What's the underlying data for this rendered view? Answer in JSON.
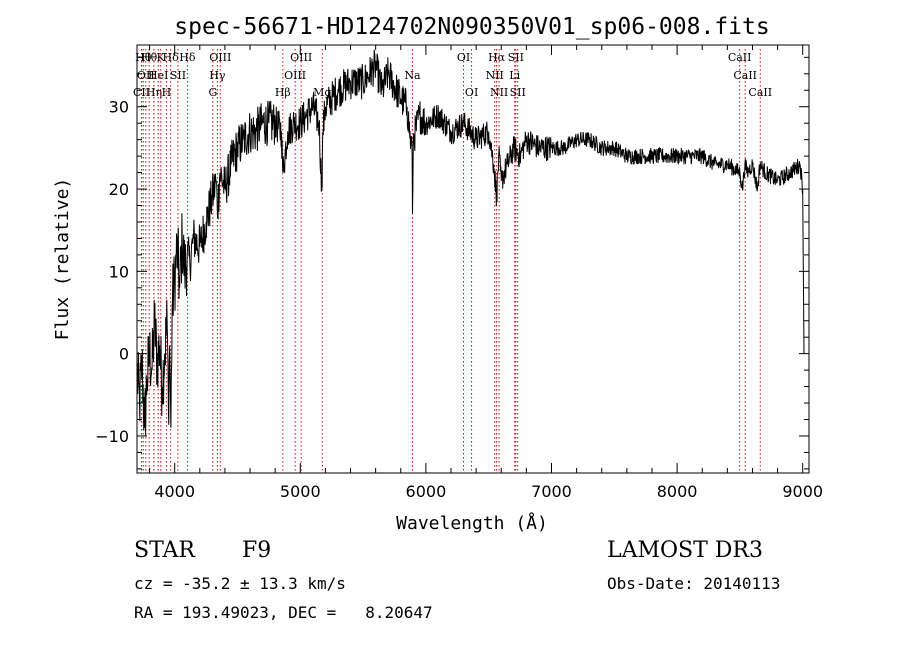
{
  "chart_data": {
    "type": "line",
    "title": "spec-56671-HD124702N090350V01_sp06-008.fits",
    "xlabel": "Wavelength (Å)",
    "ylabel": "Flux (relative)",
    "xlim": [
      3700,
      9050
    ],
    "ylim": [
      -14.5,
      37.5
    ],
    "x_ticks": [
      4000,
      5000,
      6000,
      7000,
      8000,
      9000
    ],
    "y_ticks": [
      -10,
      0,
      10,
      20,
      30
    ],
    "series": [
      {
        "name": "flux",
        "x": [
          3700,
          3720,
          3740,
          3760,
          3780,
          3800,
          3820,
          3840,
          3860,
          3880,
          3900,
          3920,
          3940,
          3950,
          3960,
          3970,
          3980,
          4000,
          4020,
          4040,
          4060,
          4080,
          4100,
          4120,
          4150,
          4200,
          4250,
          4300,
          4330,
          4340,
          4360,
          4400,
          4450,
          4500,
          4550,
          4600,
          4650,
          4700,
          4750,
          4800,
          4850,
          4861,
          4900,
          4950,
          5000,
          5050,
          5100,
          5150,
          5170,
          5180,
          5200,
          5300,
          5400,
          5500,
          5550,
          5600,
          5650,
          5700,
          5800,
          5850,
          5890,
          5893,
          5900,
          5950,
          6000,
          6100,
          6200,
          6300,
          6400,
          6500,
          6540,
          6563,
          6580,
          6600,
          6650,
          6700,
          6750,
          6800,
          6900,
          7000,
          7100,
          7200,
          7300,
          7400,
          7500,
          7600,
          7700,
          7800,
          7900,
          8000,
          8100,
          8200,
          8300,
          8400,
          8500,
          8520,
          8540,
          8560,
          8600,
          8640,
          8660,
          8700,
          8800,
          8900,
          8980,
          9000,
          9010
        ],
        "y": [
          -2,
          -6,
          -1,
          -9,
          -3,
          0,
          -2,
          4,
          -1,
          1,
          -4,
          0,
          4,
          -7,
          1,
          -9,
          6,
          9,
          13,
          8,
          14,
          10,
          12,
          11,
          14,
          13,
          16,
          19,
          21,
          17,
          22,
          20,
          23,
          25,
          26,
          27,
          27,
          28,
          28,
          28,
          27,
          22,
          27,
          28,
          28,
          29,
          30,
          28,
          20,
          27,
          30,
          32,
          33,
          33,
          34,
          35,
          32,
          34,
          31,
          30,
          24,
          17,
          26,
          29,
          28,
          29,
          27,
          28,
          26,
          27,
          23,
          19,
          24,
          21,
          23,
          25,
          24,
          26,
          25,
          25,
          25,
          26,
          26,
          25,
          25,
          24,
          24,
          24,
          24,
          24,
          24,
          24,
          23,
          23,
          22,
          20,
          23,
          22,
          23,
          20,
          23,
          22,
          21,
          22,
          23,
          20,
          0
        ]
      }
    ],
    "lines": [
      {
        "x": 3736,
        "row": 2,
        "label": "CII"
      },
      {
        "x": 3750,
        "row": 0,
        "label": "Hθ"
      },
      {
        "x": 3770,
        "row": 1,
        "label": "OII"
      },
      {
        "x": 3797,
        "row": 0,
        "label": "Hθ"
      },
      {
        "x": 3835,
        "row": 2,
        "label": "Hη"
      },
      {
        "x": 3869,
        "row": 1,
        "label": "HeI"
      },
      {
        "x": 3889,
        "row": 0,
        "label": "K"
      },
      {
        "x": 3934,
        "row": 2,
        "label": "H"
      },
      {
        "x": 3968,
        "row": 0,
        "label": "Hδ"
      },
      {
        "x": 4026,
        "row": 1,
        "label": "SII"
      },
      {
        "x": 4101,
        "row": 0,
        "label": "Hδ"
      },
      {
        "x": 4304,
        "row": 2,
        "label": "G"
      },
      {
        "x": 4340,
        "row": 1,
        "label": "Hγ"
      },
      {
        "x": 4363,
        "row": 0,
        "label": "OIII"
      },
      {
        "x": 4861,
        "row": 2,
        "label": "Hβ"
      },
      {
        "x": 4959,
        "row": 1,
        "label": "OIII"
      },
      {
        "x": 5007,
        "row": 0,
        "label": "OIII"
      },
      {
        "x": 5175,
        "row": 2,
        "label": "Mg"
      },
      {
        "x": 5893,
        "row": 1,
        "label": "Na"
      },
      {
        "x": 6300,
        "row": 0,
        "label": "OI"
      },
      {
        "x": 6364,
        "row": 2,
        "label": "OI"
      },
      {
        "x": 6548,
        "row": 1,
        "label": "NII"
      },
      {
        "x": 6563,
        "row": 0,
        "label": "Hα"
      },
      {
        "x": 6583,
        "row": 2,
        "label": "NII"
      },
      {
        "x": 6707,
        "row": 1,
        "label": "Li"
      },
      {
        "x": 6716,
        "row": 0,
        "label": "SII"
      },
      {
        "x": 6731,
        "row": 2,
        "label": "SII"
      },
      {
        "x": 8498,
        "row": 0,
        "label": "CaII"
      },
      {
        "x": 8542,
        "row": 1,
        "label": "CaII"
      },
      {
        "x": 8662,
        "row": 2,
        "label": "CaII"
      }
    ]
  },
  "info": {
    "class_label": "STAR",
    "subclass": "F9",
    "cz": "cz = -35.2 ± 13.3 km/s",
    "survey": "LAMOST DR3",
    "obs_date": "Obs-Date: 20140113",
    "radec": "RA = 193.49023, DEC =   8.20647"
  },
  "colors": {
    "axis": "#000000",
    "spectrum": "#000000",
    "line_marker": "#cc0000"
  }
}
